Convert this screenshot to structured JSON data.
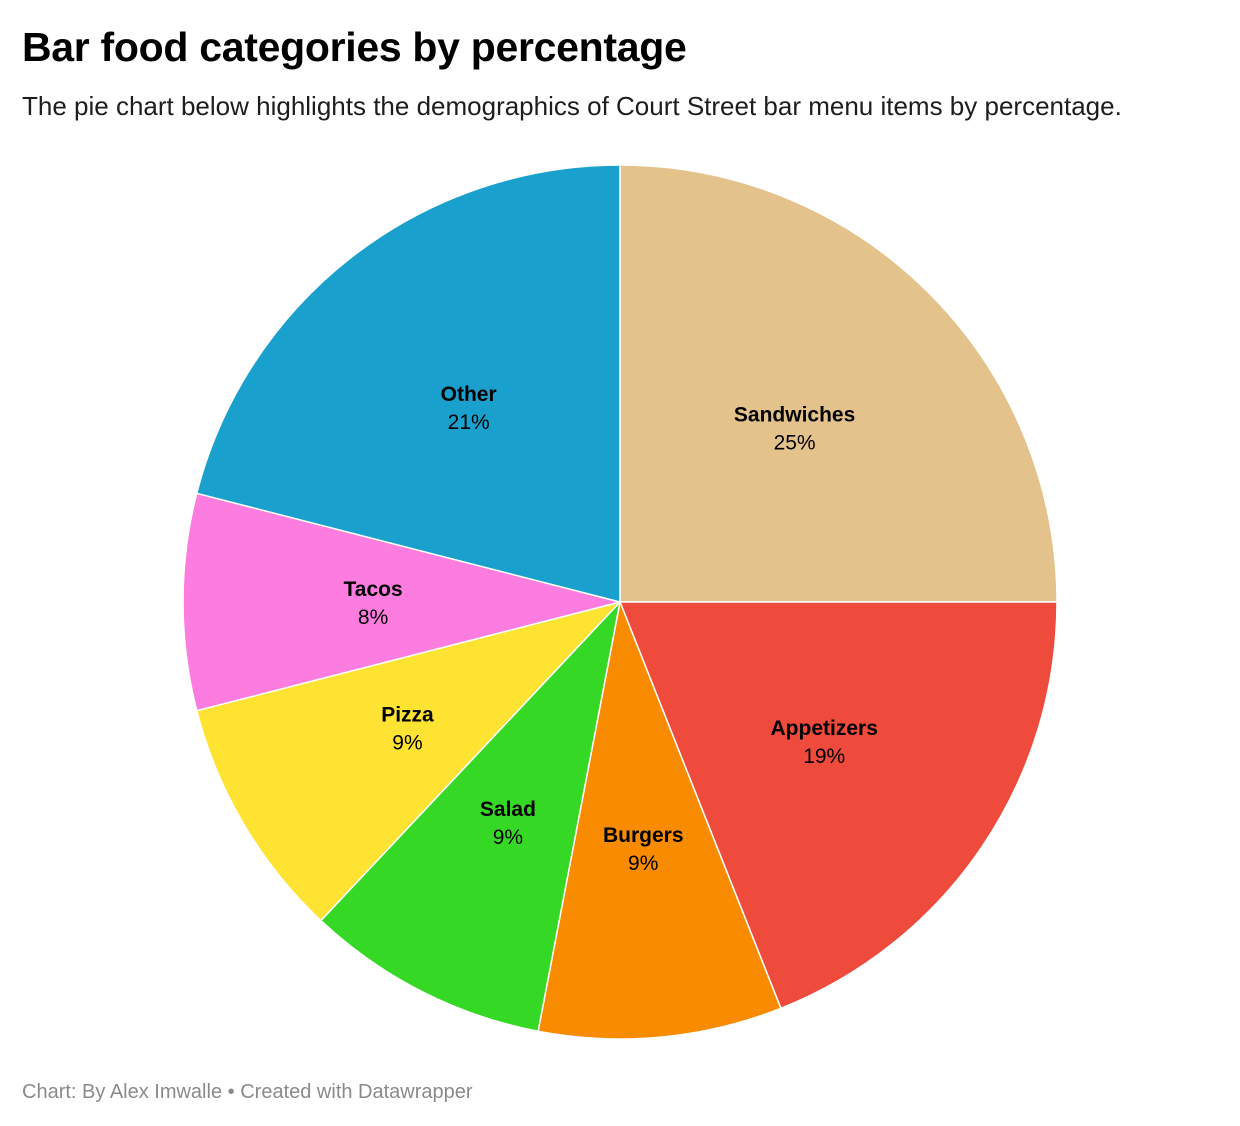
{
  "title": "Bar food categories by percentage",
  "subtitle": "The pie chart below highlights the demographics of Court Street bar menu items by percentage.",
  "footer": {
    "credit": "Chart: By Alex Imwalle",
    "separator": "•",
    "tool": "Created with Datawrapper"
  },
  "chart_data": {
    "type": "pie",
    "title": "Bar food categories by percentage",
    "slices": [
      {
        "label": "Sandwiches",
        "value": 25,
        "display": "25%",
        "color": "#e4c28b"
      },
      {
        "label": "Appetizers",
        "value": 19,
        "display": "19%",
        "color": "#ef4b3d"
      },
      {
        "label": "Burgers",
        "value": 9,
        "display": "9%",
        "color": "#f88b00"
      },
      {
        "label": "Salad",
        "value": 9,
        "display": "9%",
        "color": "#36d826"
      },
      {
        "label": "Pizza",
        "value": 9,
        "display": "9%",
        "color": "#fee333"
      },
      {
        "label": "Tacos",
        "value": 8,
        "display": "8%",
        "color": "#fc7cdf"
      },
      {
        "label": "Other",
        "value": 21,
        "display": "21%",
        "color": "#1aa0cc"
      }
    ],
    "start": "12 o'clock",
    "direction": "clockwise",
    "legend": "none (labels inside slices)"
  }
}
